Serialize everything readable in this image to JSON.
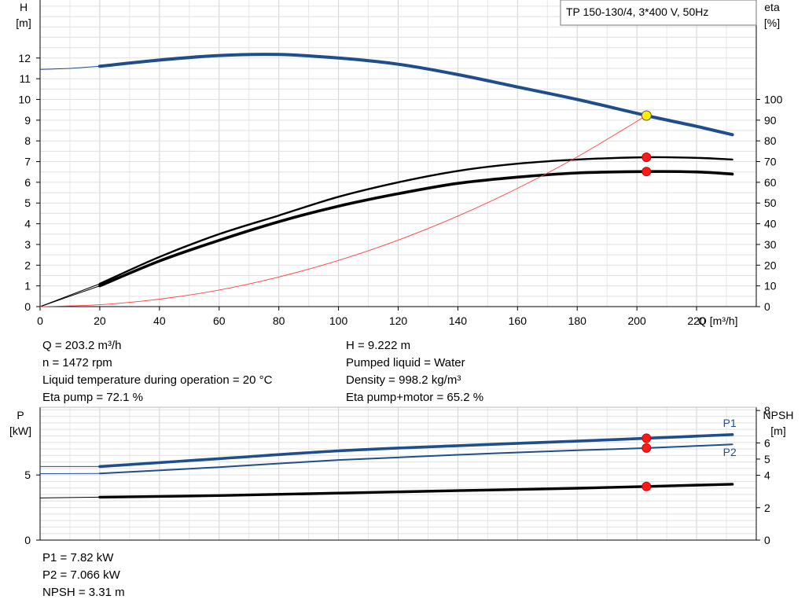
{
  "legend_box": "TP 150-130/4, 3*400 V, 50Hz",
  "chart_data": [
    {
      "type": "line",
      "name": "performance",
      "xlabel": "Q [m³/h]",
      "ylabel_left": [
        "H",
        "[m]"
      ],
      "ylabel_right": [
        "eta",
        "[%]"
      ],
      "xlim": [
        0,
        240
      ],
      "ylim_left": [
        0,
        14.8
      ],
      "ylim_right": [
        0,
        148
      ],
      "x_ticks": [
        0,
        20,
        40,
        60,
        80,
        100,
        120,
        140,
        160,
        180,
        200,
        220
      ],
      "y_ticks_left": [
        0,
        1,
        2,
        3,
        4,
        5,
        6,
        7,
        8,
        9,
        10,
        11,
        12
      ],
      "y_ticks_right": [
        0,
        10,
        20,
        30,
        40,
        50,
        60,
        70,
        80,
        90,
        100
      ],
      "grid": true,
      "series": [
        {
          "key": "H",
          "axis": "left",
          "color": "#1f4e8a",
          "x": [
            0,
            10,
            20,
            40,
            60,
            80,
            100,
            120,
            140,
            160,
            180,
            203.2,
            220,
            232
          ],
          "y": [
            11.45,
            11.5,
            11.6,
            11.9,
            12.12,
            12.17,
            12.0,
            11.7,
            11.2,
            10.6,
            10.0,
            9.222,
            8.7,
            8.3
          ]
        },
        {
          "key": "eta_pump",
          "axis": "right",
          "color": "#000000",
          "x": [
            0,
            20,
            40,
            60,
            80,
            100,
            120,
            140,
            160,
            180,
            203.2,
            220,
            232
          ],
          "y": [
            0,
            11,
            24,
            35,
            44,
            53,
            60,
            65.5,
            69,
            71,
            72.1,
            71.8,
            71
          ]
        },
        {
          "key": "eta_pump_motor",
          "axis": "right",
          "color": "#000000",
          "x": [
            0,
            20,
            40,
            60,
            80,
            100,
            120,
            140,
            160,
            180,
            203.2,
            220,
            232
          ],
          "y": [
            0,
            10,
            22,
            32,
            41,
            48.5,
            54.5,
            59.5,
            62.5,
            64.5,
            65.2,
            65,
            64
          ]
        },
        {
          "key": "system",
          "axis": "left",
          "color": "#ff4040",
          "x": [
            0,
            20,
            40,
            60,
            80,
            100,
            120,
            140,
            160,
            180,
            203.2
          ],
          "y": [
            0,
            0.09,
            0.36,
            0.8,
            1.43,
            2.23,
            3.21,
            4.37,
            5.71,
            7.23,
            9.222
          ]
        }
      ],
      "markers": [
        {
          "axis": "left",
          "x": 203.2,
          "y": 9.222,
          "color": "#ffee00"
        },
        {
          "axis": "right",
          "x": 203.2,
          "y": 72.1,
          "color": "#ff1a1a"
        },
        {
          "axis": "right",
          "x": 203.2,
          "y": 65.2,
          "color": "#ff1a1a"
        }
      ]
    },
    {
      "type": "line",
      "name": "power",
      "ylabel_left": [
        "P",
        "[kW]"
      ],
      "ylabel_right": [
        "NPSH",
        "[m]"
      ],
      "xlim": [
        0,
        240
      ],
      "ylim_left": [
        0,
        10.2
      ],
      "ylim_right": [
        0,
        8.2
      ],
      "y_ticks_left": [
        0,
        5
      ],
      "y_ticks_right": [
        0,
        2,
        4,
        5,
        6,
        8
      ],
      "grid": true,
      "series": [
        {
          "key": "P1",
          "label": "P1",
          "axis": "left",
          "color": "#1f4e8a",
          "x": [
            0,
            20,
            60,
            100,
            140,
            180,
            203.2,
            232
          ],
          "y": [
            5.65,
            5.65,
            6.25,
            6.85,
            7.25,
            7.6,
            7.82,
            8.1
          ]
        },
        {
          "key": "P2",
          "label": "P2",
          "axis": "left",
          "color": "#1f4e8a",
          "x": [
            0,
            20,
            60,
            100,
            140,
            180,
            203.2,
            232
          ],
          "y": [
            5.1,
            5.12,
            5.6,
            6.15,
            6.55,
            6.9,
            7.066,
            7.35
          ]
        },
        {
          "key": "NPSH",
          "axis": "right",
          "color": "#000000",
          "x": [
            0,
            20,
            60,
            100,
            140,
            180,
            203.2,
            232
          ],
          "y": [
            2.6,
            2.65,
            2.75,
            2.9,
            3.05,
            3.2,
            3.31,
            3.45
          ]
        }
      ],
      "markers": [
        {
          "axis": "left",
          "x": 203.2,
          "y": 7.82,
          "color": "#ff1a1a"
        },
        {
          "axis": "left",
          "x": 203.2,
          "y": 7.066,
          "color": "#ff1a1a"
        },
        {
          "axis": "right",
          "x": 203.2,
          "y": 3.31,
          "color": "#ff1a1a"
        }
      ]
    }
  ],
  "info_top_left": [
    "Q = 203.2 m³/h",
    "n = 1472 rpm",
    "Liquid temperature during operation = 20 °C",
    "Eta pump = 72.1 %"
  ],
  "info_top_right": [
    "H = 9.222 m",
    "Pumped liquid = Water",
    "Density = 998.2 kg/m³",
    "Eta pump+motor = 65.2 %"
  ],
  "info_bottom": [
    "P1 = 7.82 kW",
    "P2 = 7.066 kW",
    "NPSH = 3.31 m"
  ]
}
